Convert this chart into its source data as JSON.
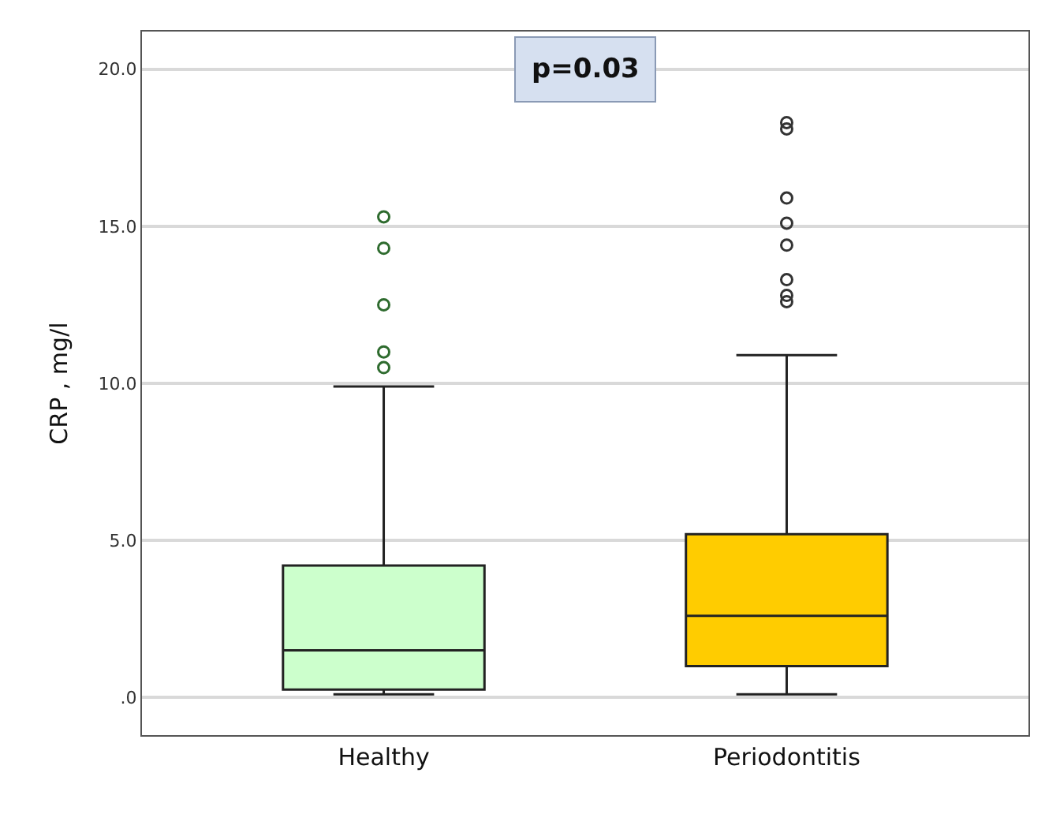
{
  "chart_data": {
    "type": "box",
    "ylabel": "CRP , mg/l",
    "categories": [
      "Healthy",
      "Periodontitis"
    ],
    "colors": [
      "#ccffcc",
      "#ffcc00"
    ],
    "boxes": [
      {
        "low": 0.1,
        "q1": 0.25,
        "median": 1.5,
        "q3": 4.2,
        "high": 9.9,
        "outliers": [
          10.5,
          11.0,
          12.5,
          14.3,
          15.3
        ]
      },
      {
        "low": 0.1,
        "q1": 1.0,
        "median": 2.6,
        "q3": 5.2,
        "high": 10.9,
        "outliers": [
          12.6,
          12.8,
          13.3,
          14.4,
          15.1,
          15.9,
          18.1,
          18.3
        ]
      }
    ],
    "ylim": [
      -1.2,
      21.2
    ],
    "yticks": [
      {
        "value": 0,
        "label": ".0"
      },
      {
        "value": 5,
        "label": "5.0"
      },
      {
        "value": 10,
        "label": "10.0"
      },
      {
        "value": 15,
        "label": "15.0"
      },
      {
        "value": 20,
        "label": "20.0"
      }
    ],
    "grid": "y",
    "marker": "circle",
    "annotations": [
      "p=0.03"
    ]
  }
}
